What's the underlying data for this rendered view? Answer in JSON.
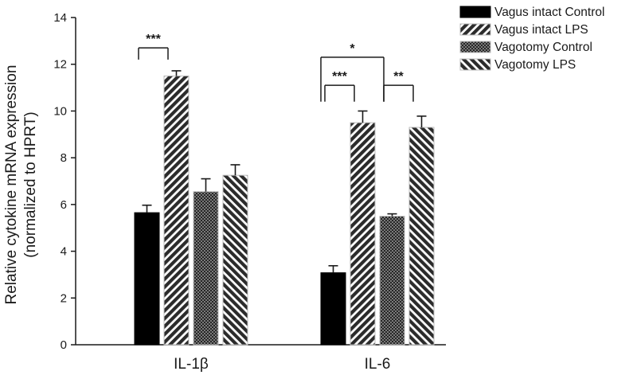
{
  "chart_data": {
    "type": "bar",
    "categories": [
      "IL-1β",
      "IL-6"
    ],
    "ylabel_lines": [
      "Relative cytokine mRNA expression",
      "(normalized to HPRT)"
    ],
    "ylim": [
      0,
      14
    ],
    "yticks": [
      "0",
      "2",
      "4",
      "6",
      "8",
      "10",
      "12",
      "14"
    ],
    "legend_position": "top-right",
    "series": [
      {
        "name": "Vagus intact Control",
        "values": [
          5.65,
          3.08
        ],
        "errors": [
          0.32,
          0.3
        ],
        "fill": "#000000",
        "pattern": "solid"
      },
      {
        "name": "Vagus intact LPS",
        "values": [
          11.5,
          9.5
        ],
        "errors": [
          0.22,
          0.5
        ],
        "fill": "#2b2b2b",
        "pattern": "diagonal-up"
      },
      {
        "name": "Vagotomy Control",
        "values": [
          6.55,
          5.5
        ],
        "errors": [
          0.55,
          0.1
        ],
        "fill": "#3a3a3a",
        "pattern": "crosshatch"
      },
      {
        "name": "Vagotomy LPS",
        "values": [
          7.25,
          9.3
        ],
        "errors": [
          0.45,
          0.48
        ],
        "fill": "#2b2b2b",
        "pattern": "diagonal-down"
      }
    ],
    "significance": [
      {
        "category": 0,
        "from_series": 0,
        "to_series": 1,
        "label": "***",
        "bracket_y": 12.7,
        "tick_to_y": 12.2
      },
      {
        "category": 1,
        "from_series": 0,
        "to_series": 1,
        "label": "***",
        "bracket_y": 11.1,
        "tick_to_y": 10.4
      },
      {
        "category": 1,
        "from_series": 2,
        "to_series": 3,
        "label": "**",
        "bracket_y": 11.1,
        "tick_to_y": 10.4
      },
      {
        "category": 1,
        "from_series": 0,
        "to_series": 2,
        "label": "*",
        "bracket_y": 12.3,
        "tick_to_y": 10.4,
        "mid_groups": true
      }
    ]
  }
}
